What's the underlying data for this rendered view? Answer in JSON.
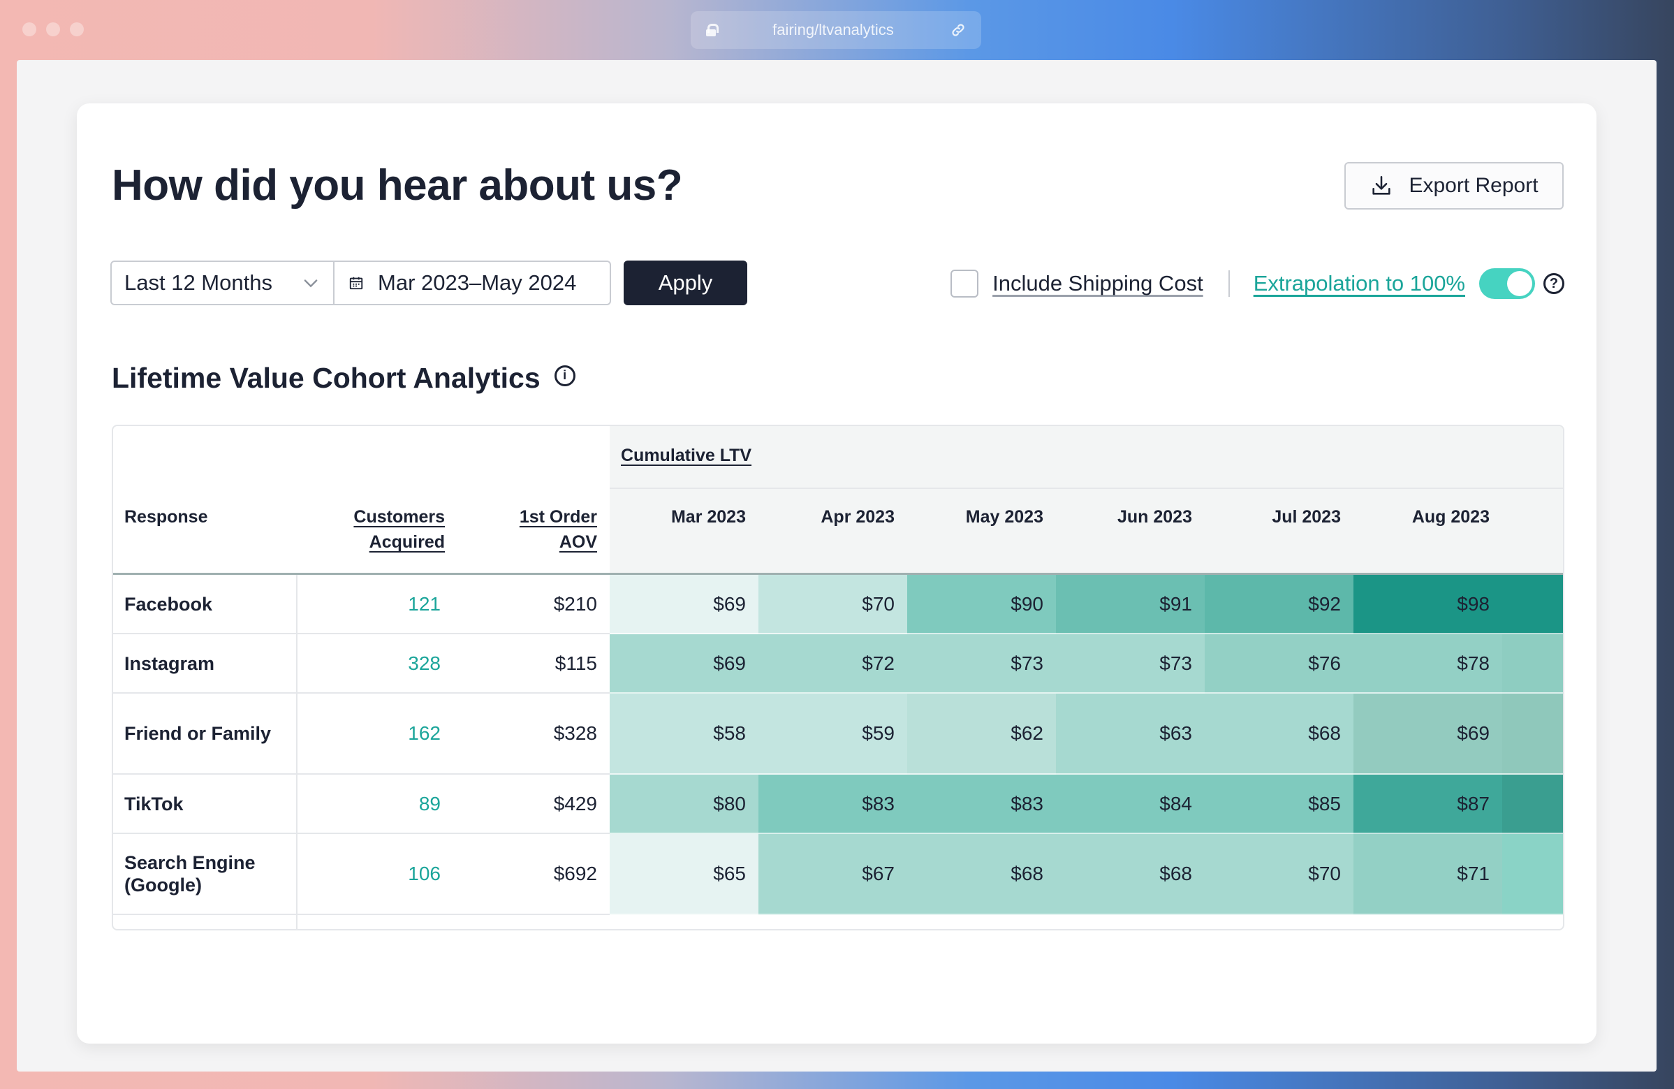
{
  "browser": {
    "url": "fairing/ltvanalytics"
  },
  "header": {
    "title": "How did you hear about us?",
    "export_label": "Export Report"
  },
  "filters": {
    "range_label": "Last 12 Months",
    "date_range": "Mar 2023–May 2024",
    "apply_label": "Apply",
    "shipping_label": "Include Shipping Cost",
    "shipping_checked": false,
    "extrapolation_label": "Extrapolation to 100%",
    "extrapolation_on": true
  },
  "section": {
    "title": "Lifetime Value Cohort Analytics"
  },
  "table": {
    "group_header": "Cumulative LTV",
    "col_response": "Response",
    "col_customers_1": "Customers",
    "col_customers_2": "Acquired",
    "col_aov_1": "1st Order",
    "col_aov_2": "AOV",
    "months": [
      "Mar 2023",
      "Apr 2023",
      "May 2023",
      "Jun 2023",
      "Jul 2023",
      "Aug 2023"
    ],
    "rows": [
      {
        "response": "Facebook",
        "customers": "121",
        "aov": "$210",
        "ltv": [
          "$69",
          "$70",
          "$90",
          "$91",
          "$92",
          "$98"
        ]
      },
      {
        "response": "Instagram",
        "customers": "328",
        "aov": "$115",
        "ltv": [
          "$69",
          "$72",
          "$73",
          "$73",
          "$76",
          "$78"
        ]
      },
      {
        "response": "Friend or Family",
        "customers": "162",
        "aov": "$328",
        "ltv": [
          "$58",
          "$59",
          "$62",
          "$63",
          "$68",
          "$69"
        ]
      },
      {
        "response": "TikTok",
        "customers": "89",
        "aov": "$429",
        "ltv": [
          "$80",
          "$83",
          "$83",
          "$84",
          "$85",
          "$87"
        ]
      },
      {
        "response": "Search Engine (Google)",
        "customers": "106",
        "aov": "$692",
        "ltv": [
          "$65",
          "$67",
          "$68",
          "$68",
          "$70",
          "$71"
        ]
      }
    ]
  },
  "colors": {
    "accent": "#1ba59a",
    "toggle": "#46d3c1",
    "dark": "#1c2233",
    "heat": [
      [
        "#e6f3f2",
        "#c3e5e0",
        "#7fcabe",
        "#6bbfb2",
        "#5db8aa",
        "#1b9586",
        "#1b9586"
      ],
      [
        "#a6d9d0",
        "#a6d9d0",
        "#a6d9d0",
        "#a6d9d0",
        "#93d0c5",
        "#93d0c5",
        "#8ecdc1"
      ],
      [
        "#c3e5e0",
        "#c3e5e0",
        "#b9e0d9",
        "#a6d9d0",
        "#a6d9d0",
        "#93cbbf",
        "#8fc8bb"
      ],
      [
        "#a6d9d0",
        "#7fcabe",
        "#7fcabe",
        "#7fcabe",
        "#7fcabe",
        "#3fa89a",
        "#3a9e90"
      ],
      [
        "#e6f3f2",
        "#a6d9d0",
        "#a6d9d0",
        "#a6d9d0",
        "#a6d9d0",
        "#93d0c5",
        "#8ad3c6"
      ]
    ]
  }
}
